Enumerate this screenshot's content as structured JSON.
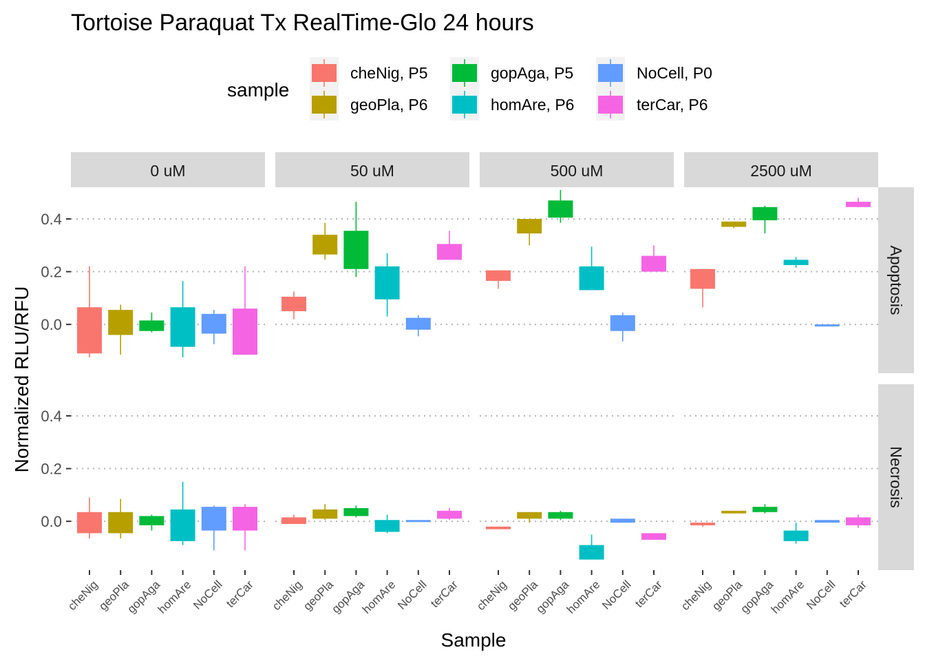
{
  "chart_data": {
    "type": "boxplot",
    "title": "Tortoise Paraquat Tx RealTime-Glo 24 hours",
    "xlabel": "Sample",
    "ylabel": "Normalized RLU/RFU",
    "legend": {
      "title": "sample",
      "placement": "top",
      "entries": [
        {
          "label": "cheNig, P5",
          "color": "#F8766D"
        },
        {
          "label": "gopAga, P5",
          "color": "#00BA38"
        },
        {
          "label": "NoCell, P0",
          "color": "#619CFF"
        },
        {
          "label": "geoPla, P6",
          "color": "#B79F00"
        },
        {
          "label": "homAre, P6",
          "color": "#00BFC4"
        },
        {
          "label": "terCar, P6",
          "color": "#F564E3"
        }
      ]
    },
    "categories": [
      "cheNig",
      "geoPla",
      "gopAga",
      "homAre",
      "NoCell",
      "terCar"
    ],
    "colors": [
      "#F8766D",
      "#B79F00",
      "#00BA38",
      "#00BFC4",
      "#619CFF",
      "#F564E3"
    ],
    "facet_cols": [
      "0 uM",
      "50 uM",
      "500 uM",
      "2500 uM"
    ],
    "facet_rows": [
      "Apoptosis",
      "Necrosis"
    ],
    "y_ticks": [
      0.0,
      0.2,
      0.4
    ],
    "y_tick_labels": [
      "0.0",
      "0.2",
      "0.4"
    ],
    "ylim": [
      -0.185,
      0.52
    ],
    "grid": "horizontal-dotted",
    "panels": {
      "Apoptosis": {
        "0 uM": [
          [
            -0.125,
            -0.11,
            0.065,
            0.065,
            0.22
          ],
          [
            -0.115,
            -0.04,
            0.055,
            0.055,
            0.075
          ],
          [
            -0.03,
            -0.025,
            0.015,
            0.015,
            0.045
          ],
          [
            -0.125,
            -0.085,
            0.065,
            0.065,
            0.165
          ],
          [
            -0.075,
            -0.035,
            0.04,
            0.04,
            0.055
          ],
          [
            -0.115,
            -0.115,
            0.06,
            0.06,
            0.22
          ]
        ],
        "50 uM": [
          [
            0.02,
            0.05,
            0.105,
            0.105,
            0.125
          ],
          [
            0.245,
            0.265,
            0.34,
            0.34,
            0.385
          ],
          [
            0.18,
            0.21,
            0.355,
            0.355,
            0.465
          ],
          [
            0.03,
            0.095,
            0.22,
            0.22,
            0.27
          ],
          [
            -0.045,
            -0.02,
            0.025,
            0.025,
            0.035
          ],
          [
            0.245,
            0.245,
            0.305,
            0.305,
            0.355
          ]
        ],
        "500 uM": [
          [
            0.135,
            0.165,
            0.205,
            0.205,
            0.205
          ],
          [
            0.3,
            0.345,
            0.4,
            0.4,
            0.4
          ],
          [
            0.385,
            0.405,
            0.47,
            0.47,
            0.51
          ],
          [
            0.13,
            0.13,
            0.22,
            0.22,
            0.295
          ],
          [
            -0.065,
            -0.025,
            0.035,
            0.035,
            0.045
          ],
          [
            0.2,
            0.2,
            0.26,
            0.26,
            0.3
          ]
        ],
        "2500 uM": [
          [
            0.065,
            0.135,
            0.21,
            0.21,
            0.21
          ],
          [
            0.365,
            0.37,
            0.39,
            0.39,
            0.39
          ],
          [
            0.345,
            0.395,
            0.445,
            0.445,
            0.45
          ],
          [
            0.215,
            0.225,
            0.245,
            0.245,
            0.255
          ],
          [
            -0.005,
            -0.005,
            0.0,
            0.0,
            0.0
          ],
          [
            0.445,
            0.445,
            0.465,
            0.465,
            0.48
          ]
        ]
      },
      "Necrosis": {
        "0 uM": [
          [
            -0.065,
            -0.045,
            0.035,
            0.035,
            0.09
          ],
          [
            -0.065,
            -0.045,
            0.035,
            0.035,
            0.085
          ],
          [
            -0.035,
            -0.015,
            0.02,
            0.02,
            0.025
          ],
          [
            -0.09,
            -0.075,
            0.045,
            0.045,
            0.15
          ],
          [
            -0.11,
            -0.035,
            0.055,
            0.055,
            0.06
          ],
          [
            -0.11,
            -0.035,
            0.055,
            0.055,
            0.065
          ]
        ],
        "50 uM": [
          [
            -0.01,
            -0.01,
            0.015,
            0.015,
            0.025
          ],
          [
            0.005,
            0.01,
            0.045,
            0.045,
            0.065
          ],
          [
            0.015,
            0.02,
            0.05,
            0.05,
            0.06
          ],
          [
            -0.045,
            -0.04,
            0.005,
            0.005,
            0.025
          ],
          [
            0.0,
            0.0,
            0.005,
            0.005,
            0.005
          ],
          [
            0.005,
            0.01,
            0.04,
            0.04,
            0.05
          ]
        ],
        "500 uM": [
          [
            -0.03,
            -0.03,
            -0.02,
            -0.02,
            -0.02
          ],
          [
            -0.005,
            0.01,
            0.035,
            0.035,
            0.035
          ],
          [
            0.005,
            0.01,
            0.035,
            0.035,
            0.04
          ],
          [
            -0.145,
            -0.145,
            -0.09,
            -0.09,
            -0.05
          ],
          [
            -0.005,
            -0.005,
            0.01,
            0.01,
            0.01
          ],
          [
            -0.07,
            -0.07,
            -0.045,
            -0.045,
            -0.045
          ]
        ],
        "2500 uM": [
          [
            -0.02,
            -0.015,
            -0.005,
            -0.005,
            -0.005
          ],
          [
            0.03,
            0.03,
            0.04,
            0.04,
            0.04
          ],
          [
            0.03,
            0.035,
            0.055,
            0.055,
            0.065
          ],
          [
            -0.085,
            -0.075,
            -0.035,
            -0.035,
            -0.005
          ],
          [
            -0.005,
            -0.005,
            0.005,
            0.005,
            0.005
          ],
          [
            -0.025,
            -0.015,
            0.015,
            0.015,
            0.025
          ]
        ]
      }
    }
  }
}
